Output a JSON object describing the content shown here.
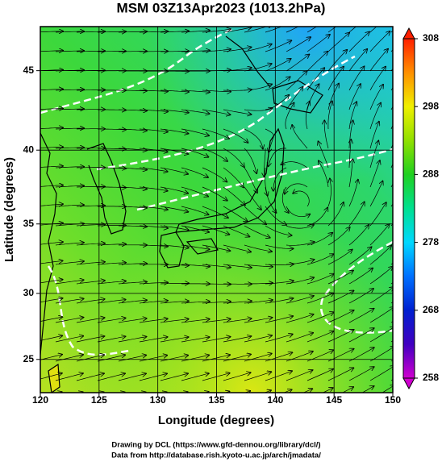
{
  "title": "MSM 03Z13Apr2023 (1013.2hPa)",
  "map": {
    "xlabel": "Longitude (degrees)",
    "ylabel": "Latitude  (degrees)",
    "projection": "mercator",
    "xlim": [
      120,
      150
    ],
    "ylim": [
      22.4,
      47.6
    ],
    "xticks": [
      120,
      125,
      130,
      135,
      140,
      145,
      150
    ],
    "yticks": [
      25,
      30,
      35,
      40,
      45
    ]
  },
  "colorbar": {
    "lim": [
      258,
      308
    ],
    "ticks": [
      258,
      268,
      278,
      288,
      298,
      308
    ]
  },
  "credits": [
    "Drawing by DCL (https://www.gfd-dennou.org/library/dcl/)",
    "Data from http://database.rish.kyoto-u.ac.jp/arch/jmadata/"
  ]
}
